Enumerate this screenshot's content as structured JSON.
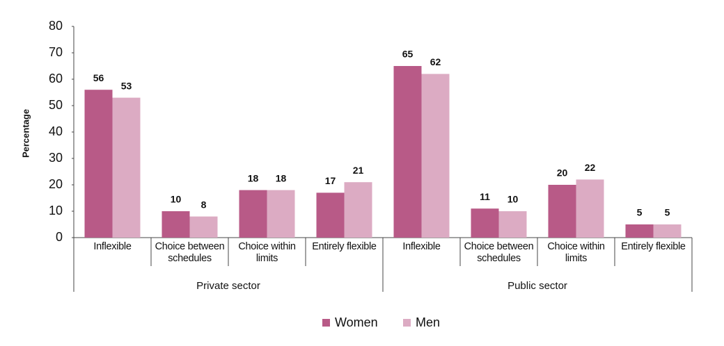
{
  "chart_data": {
    "type": "bar",
    "y_label": "Percentage",
    "groups": [
      {
        "name": "Private sector",
        "categories": [
          "Inflexible",
          "Choice between schedules",
          "Choice within limits",
          "Entirely flexible"
        ]
      },
      {
        "name": "Public sector",
        "categories": [
          "Inflexible",
          "Choice between schedules",
          "Choice within limits",
          "Entirely flexible"
        ]
      }
    ],
    "series": [
      {
        "name": "Women",
        "color": "#b85a87",
        "values": [
          56,
          10,
          18,
          17,
          65,
          11,
          20,
          5
        ]
      },
      {
        "name": "Men",
        "color": "#dcabc3",
        "values": [
          53,
          8,
          18,
          21,
          62,
          10,
          22,
          5
        ]
      }
    ],
    "ylim": [
      0,
      80
    ],
    "yticks": [
      0,
      10,
      20,
      30,
      40,
      50,
      60,
      70,
      80
    ],
    "grid": false,
    "legend": "bottom"
  }
}
